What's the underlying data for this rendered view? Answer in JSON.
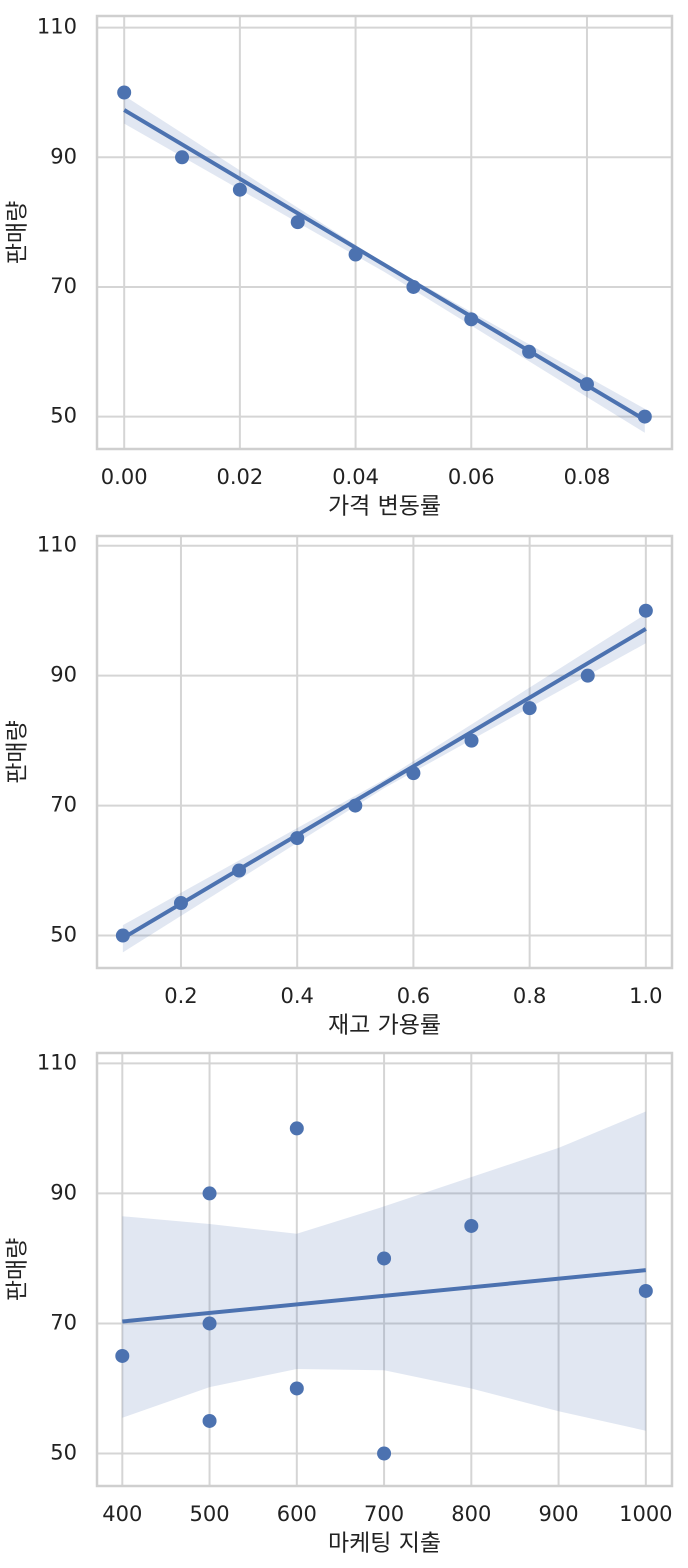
{
  "chart_data": [
    {
      "type": "scatter",
      "x_label": "가격 변동률",
      "y_label": "판매량",
      "color": "#4c72b0",
      "grid": true,
      "x": [
        0.0,
        0.01,
        0.02,
        0.03,
        0.04,
        0.05,
        0.06,
        0.07,
        0.08,
        0.09
      ],
      "values": [
        100,
        90,
        85,
        80,
        75,
        70,
        65,
        60,
        55,
        50
      ],
      "fit": {
        "x": [
          0.0,
          0.09
        ],
        "y": [
          97.3,
          49.5
        ]
      },
      "band": {
        "x": [
          0.0,
          0.045,
          0.09
        ],
        "lower": [
          95.2,
          72.3,
          47.5
        ],
        "upper": [
          99.5,
          73.6,
          51.2
        ]
      },
      "xlim": [
        -0.0047,
        0.0947
      ],
      "ylim": [
        45,
        111.8
      ],
      "xticks": [
        {
          "value": 0,
          "label": "0.00"
        },
        {
          "value": 0.02,
          "label": "0.02"
        },
        {
          "value": 0.04,
          "label": "0.04"
        },
        {
          "value": 0.06,
          "label": "0.06"
        },
        {
          "value": 0.08,
          "label": "0.08"
        }
      ],
      "yticks": [
        50,
        70,
        90,
        110
      ]
    },
    {
      "type": "scatter",
      "x_label": "재고 가용률",
      "y_label": "판매량",
      "color": "#4c72b0",
      "grid": true,
      "x": [
        0.1,
        0.2,
        0.3,
        0.4,
        0.5,
        0.6,
        0.7,
        0.8,
        0.9,
        1.0
      ],
      "values": [
        50,
        55,
        60,
        65,
        70,
        75,
        80,
        85,
        90,
        100
      ],
      "fit": {
        "x": [
          0.1,
          1.0
        ],
        "y": [
          49.6,
          97.2
        ]
      },
      "band": {
        "x": [
          0.1,
          0.55,
          1.0
        ],
        "lower": [
          47.4,
          72.7,
          95.0
        ],
        "upper": [
          51.6,
          74.0,
          99.5
        ]
      },
      "xlim": [
        0.0555,
        1.045
      ],
      "ylim": [
        45,
        111.5
      ],
      "xticks": [
        0.2,
        0.4,
        0.6,
        0.8,
        {
          "value": 1,
          "label": "1.0"
        }
      ],
      "yticks": [
        50,
        70,
        90,
        110
      ]
    },
    {
      "type": "scatter",
      "x_label": "마케팅 지출",
      "y_label": "판매량",
      "color": "#4c72b0",
      "grid": true,
      "x": [
        400,
        500,
        500,
        500,
        600,
        600,
        700,
        700,
        800,
        1000
      ],
      "values": [
        65,
        90,
        70,
        55,
        100,
        60,
        80,
        50,
        85,
        75
      ],
      "fit": {
        "x": [
          400,
          1000
        ],
        "y": [
          70.3,
          78.2
        ]
      },
      "band": {
        "x": [
          400,
          500,
          600,
          700,
          800,
          900,
          1000
        ],
        "lower": [
          55.5,
          60.2,
          63,
          62.8,
          60,
          56.5,
          53.5
        ],
        "upper": [
          86.5,
          85.3,
          83.8,
          88,
          92.5,
          97,
          102.6
        ]
      },
      "xlim": [
        371,
        1030
      ],
      "ylim": [
        45,
        111.6
      ],
      "xticks": [
        400,
        500,
        600,
        700,
        800,
        900,
        1000
      ],
      "yticks": [
        50,
        70,
        90,
        110
      ]
    }
  ]
}
